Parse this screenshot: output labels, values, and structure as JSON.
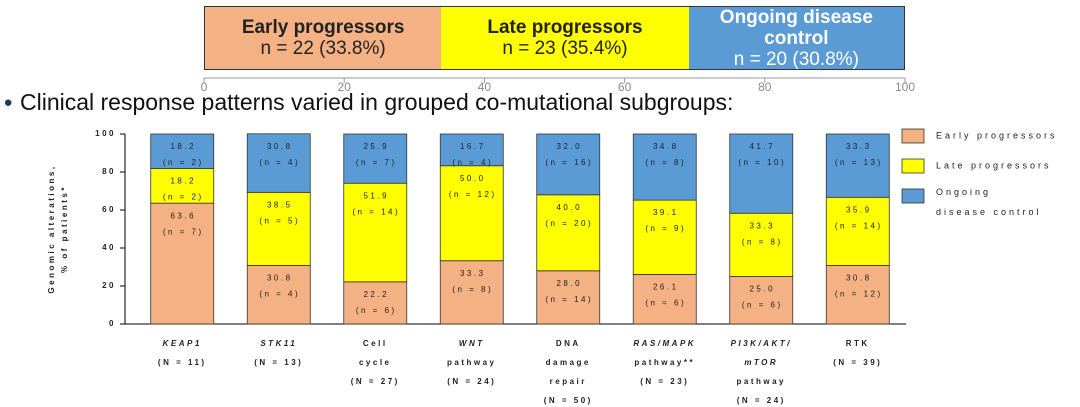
{
  "chart_data": [
    {
      "type": "bar",
      "orientation": "horizontal",
      "stacked": true,
      "xlim": [
        0,
        100
      ],
      "xticks": [
        0,
        20,
        40,
        60,
        80,
        100
      ],
      "series": [
        {
          "name": "Early progressors",
          "color": "#f4b183",
          "values": [
            33.8
          ],
          "value_labels": [
            "n = 22 (33.8%)"
          ]
        },
        {
          "name": "Late progressors",
          "color": "#ffff00",
          "values": [
            35.4
          ],
          "value_labels": [
            "n = 23 (35.4%)"
          ]
        },
        {
          "name": "Ongoing disease control",
          "color": "#5b9bd5",
          "values": [
            30.8
          ],
          "value_labels": [
            "n = 20 (30.8%)"
          ]
        }
      ]
    },
    {
      "type": "bar",
      "stacked": true,
      "ylabel": [
        "Genomic alterations,",
        "% of patients*"
      ],
      "categories": [
        [
          "KEAP1",
          "(N = 11)"
        ],
        [
          "STK11",
          "(N = 13)"
        ],
        [
          "Cell",
          "cycle",
          "(N = 27)"
        ],
        [
          "WNT",
          "pathway",
          "(N = 24)"
        ],
        [
          "DNA",
          "damage",
          "repair",
          "(N = 50)"
        ],
        [
          "RAS/MAPK",
          "pathway**",
          "(N = 23)"
        ],
        [
          "PI3K/AKT/",
          "mTOR",
          "pathway",
          "(N = 24)"
        ],
        [
          "RTK",
          "(N = 39)"
        ]
      ],
      "category_italic_lines": [
        1,
        1,
        0,
        1,
        0,
        1,
        2,
        0
      ],
      "ylim": [
        0,
        100
      ],
      "yticks": [
        0,
        20,
        40,
        60,
        80,
        100
      ],
      "legend": "right",
      "series": [
        {
          "name": "Early progressors",
          "color": "#f4b183",
          "values": [
            63.6,
            30.8,
            22.2,
            33.3,
            28.0,
            26.1,
            25.0,
            30.8
          ],
          "value_labels": [
            "63.6",
            "30.8",
            "22.2",
            "33.3",
            "28.0",
            "26.1",
            "25.0",
            "30.8"
          ],
          "count_labels": [
            "(n = 7)",
            "(n = 4)",
            "(n = 6)",
            "(n = 8)",
            "(n = 14)",
            "(n = 6)",
            "(n = 6)",
            "(n = 12)"
          ]
        },
        {
          "name": "Late progressors",
          "color": "#ffff00",
          "values": [
            18.2,
            38.5,
            51.9,
            50.0,
            40.0,
            39.1,
            33.3,
            35.9
          ],
          "value_labels": [
            "18.2",
            "38.5",
            "51.9",
            "50.0",
            "40.0",
            "39.1",
            "33.3",
            "35.9"
          ],
          "count_labels": [
            "(n = 2)",
            "(n = 5)",
            "(n = 14)",
            "(n = 12)",
            "(n = 20)",
            "(n = 9)",
            "(n = 8)",
            "(n = 14)"
          ]
        },
        {
          "name": "Ongoing disease control",
          "color": "#5b9bd5",
          "values": [
            18.2,
            30.8,
            25.9,
            16.7,
            32.0,
            34.8,
            41.7,
            33.3
          ],
          "value_labels": [
            "18.2",
            "30.8",
            "25.9",
            "16.7",
            "32.0",
            "34.8",
            "41.7",
            "33.3"
          ],
          "count_labels": [
            "(n = 2)",
            "(n = 4)",
            "(n = 7)",
            "(n = 4)",
            "(n = 16)",
            "(n = 8)",
            "(n = 10)",
            "(n = 13)"
          ]
        }
      ]
    }
  ],
  "bullet_text": "Clinical response patterns varied in grouped co-mutational subgroups:"
}
